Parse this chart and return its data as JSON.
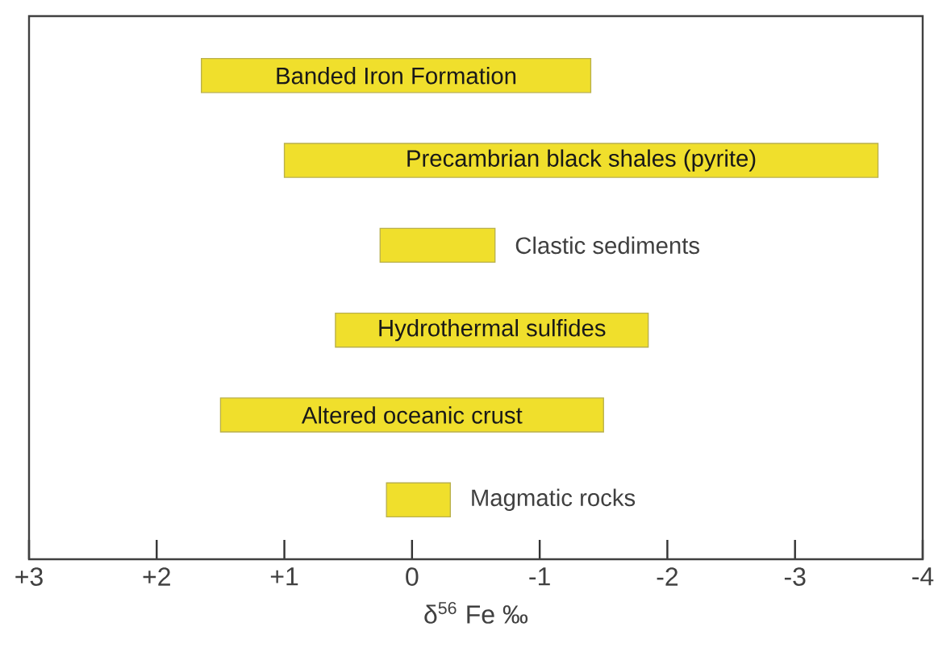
{
  "chart_data": {
    "type": "bar",
    "orientation": "horizontal",
    "xlabel": "δ$^{56}$ Fe ‰",
    "categories": [
      "Banded Iron Formation",
      "Precambrian black shales (pyrite)",
      "Clastic sediments",
      "Hydrothermal sulfides",
      "Altered oceanic crust",
      "Magmatic rocks"
    ],
    "base": [
      1.65,
      1.0,
      0.25,
      0.6,
      1.5,
      0.2
    ],
    "values": [
      -3.05,
      -4.65,
      -0.9,
      -2.45,
      -3.0,
      -0.5
    ],
    "color": "#f0df2c",
    "xlim": [
      3,
      -4
    ],
    "xticks": [
      {
        "value": 3,
        "label": "+3"
      },
      {
        "value": 2,
        "label": "+2"
      },
      {
        "value": 1,
        "label": "+1"
      },
      {
        "value": 0,
        "label": "0"
      },
      {
        "value": -1,
        "label": "-1"
      },
      {
        "value": -2,
        "label": "-2"
      },
      {
        "value": -3,
        "label": "-3"
      },
      {
        "value": -4,
        "label": "-4"
      }
    ],
    "grid": false
  }
}
